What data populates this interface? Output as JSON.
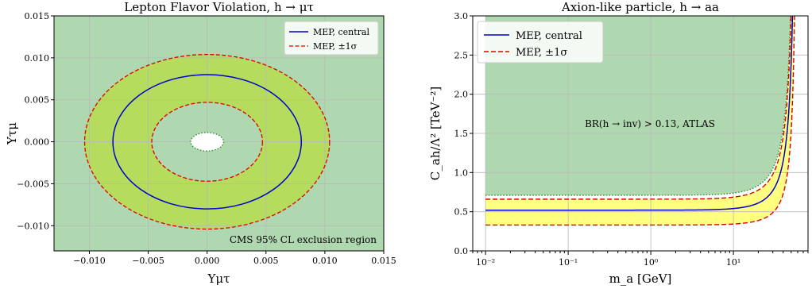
{
  "chart_data": [
    {
      "type": "contour",
      "title": "Lepton Flavor Violation, h → μτ",
      "xlabel": "Υμτ",
      "ylabel": "Υτμ",
      "xlim": [
        -0.013,
        0.015
      ],
      "ylim": [
        -0.013,
        0.015
      ],
      "xticks": [
        -0.01,
        -0.005,
        0.0,
        0.005,
        0.01,
        0.015
      ],
      "yticks": [
        -0.01,
        -0.005,
        0.0,
        0.005,
        0.01,
        0.015
      ],
      "xtick_labels": [
        "−0.010",
        "−0.005",
        "0.000",
        "0.005",
        "0.010",
        "0.015"
      ],
      "ytick_labels": [
        "−0.010",
        "−0.005",
        "0.000",
        "0.005",
        "0.010",
        "0.015"
      ],
      "grid": true,
      "legend_position": "top-right",
      "series": [
        {
          "name": "MEP, central",
          "radius_x": 0.008,
          "radius_y": 0.008,
          "color": "#0000cc",
          "style": "solid"
        },
        {
          "name": "MEP, ±1σ",
          "radii": [
            0.0047,
            0.0104
          ],
          "radii_y": [
            0.0047,
            0.0104
          ],
          "color": "#dd0000",
          "style": "dashed"
        }
      ],
      "exclusion_boundary": {
        "radius_x": 0.0014,
        "radius_y": 0.0011,
        "color": "#228b22",
        "style": "dotted"
      },
      "annotation": "CMS 95% CL exclusion region",
      "colors": {
        "excluded": "#b0d8b0",
        "band": "#b5dc5c"
      }
    },
    {
      "type": "line",
      "title": "Axion-like particle, h → aa",
      "xlabel": "m_a [GeV]",
      "ylabel": "C_ah/Λ² [TeV⁻²]",
      "xscale": "log",
      "xlim": [
        0.007,
        80
      ],
      "ylim": [
        0.0,
        3.0
      ],
      "xticks": [
        0.01,
        0.1,
        1,
        10
      ],
      "xtick_labels": [
        "10⁻²",
        "10⁻¹",
        "10⁰",
        "10¹"
      ],
      "yticks": [
        0.0,
        0.5,
        1.0,
        1.5,
        2.0,
        2.5,
        3.0
      ],
      "ytick_labels": [
        "0.0",
        "0.5",
        "1.0",
        "1.5",
        "2.0",
        "2.5",
        "3.0"
      ],
      "grid": true,
      "legend_position": "top-left",
      "x_start": 0.01,
      "x_end": 62.5,
      "series": [
        {
          "name": "MEP, central",
          "value": 0.52,
          "color": "#0000cc",
          "style": "solid"
        },
        {
          "name": "MEP, ±1σ",
          "values": [
            0.33,
            0.66
          ],
          "color": "#dd0000",
          "style": "dashed"
        }
      ],
      "exclusion_curve": {
        "value": 0.71,
        "color": "#228b22",
        "style": "dotted"
      },
      "annotation": "BR(h → inv) > 0.13, ATLAS",
      "colors": {
        "excluded": "#b0d8b0",
        "band": "#ffff80"
      }
    }
  ]
}
